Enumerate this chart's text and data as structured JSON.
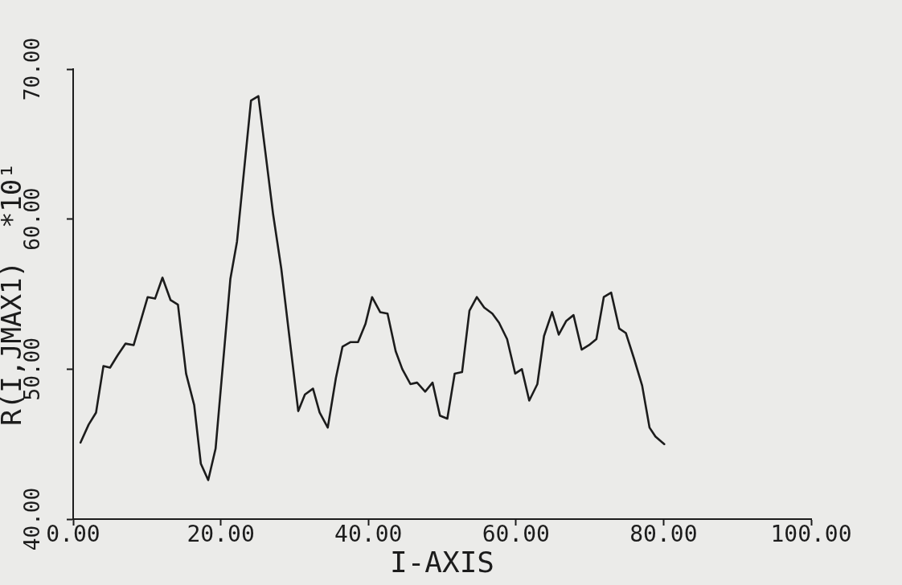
{
  "chart_data": {
    "type": "line",
    "xlabel": "I-AXIS",
    "ylabel": "R(I,JMAX1)  *10¹",
    "color": "#1c1c1c",
    "x": [
      1.0,
      2.1,
      3.1,
      4.1,
      5.0,
      6.0,
      7.1,
      8.2,
      10.1,
      11.1,
      12.1,
      13.2,
      14.2,
      15.3,
      16.4,
      17.3,
      18.3,
      19.3,
      21.3,
      22.2,
      24.1,
      25.1,
      27.1,
      28.2,
      30.5,
      31.4,
      32.5,
      33.4,
      34.5,
      35.6,
      36.5,
      37.6,
      38.6,
      39.6,
      40.5,
      41.6,
      42.6,
      43.7,
      44.6,
      45.7,
      46.6,
      47.7,
      48.7,
      49.7,
      50.7,
      51.7,
      52.7,
      53.7,
      54.7,
      55.7,
      56.8,
      57.7,
      58.8,
      59.9,
      60.8,
      61.8,
      62.9,
      63.8,
      64.9,
      65.8,
      66.8,
      67.8,
      68.9,
      69.9,
      70.9,
      71.9,
      72.9,
      74.0,
      74.9,
      76.0,
      77.1,
      78.1,
      78.9,
      80.1
    ],
    "values": [
      45.1,
      46.3,
      47.1,
      50.2,
      50.1,
      50.9,
      51.7,
      51.6,
      54.8,
      54.7,
      56.1,
      54.6,
      54.3,
      49.7,
      47.6,
      43.7,
      42.6,
      44.7,
      56.0,
      58.5,
      67.9,
      68.2,
      60.3,
      56.7,
      47.2,
      48.3,
      48.7,
      47.1,
      46.1,
      49.4,
      51.5,
      51.8,
      51.8,
      53.0,
      54.8,
      53.8,
      53.7,
      51.2,
      50.0,
      49.0,
      49.1,
      48.5,
      49.1,
      46.9,
      46.7,
      49.7,
      49.8,
      53.9,
      54.8,
      54.1,
      53.7,
      53.1,
      52.0,
      49.7,
      50.0,
      47.9,
      49.0,
      52.2,
      53.8,
      52.3,
      53.2,
      53.6,
      51.3,
      51.6,
      52.0,
      54.8,
      55.1,
      52.7,
      52.4,
      50.7,
      48.9,
      46.1,
      45.5,
      45.0
    ],
    "xlim": [
      0,
      100
    ],
    "xticks": [
      {
        "value": 0,
        "label": "0.00"
      },
      {
        "value": 20,
        "label": "20.00"
      },
      {
        "value": 40,
        "label": "40.00"
      },
      {
        "value": 60,
        "label": "60.00"
      },
      {
        "value": 80,
        "label": "80.00"
      },
      {
        "value": 100,
        "label": "100.00"
      }
    ],
    "ylim": [
      40,
      70
    ],
    "yticks": [
      {
        "value": 40,
        "label": "40.00"
      },
      {
        "value": 50,
        "label": "50.00"
      },
      {
        "value": 60,
        "label": "60.00"
      },
      {
        "value": 70,
        "label": "70.00"
      }
    ]
  }
}
